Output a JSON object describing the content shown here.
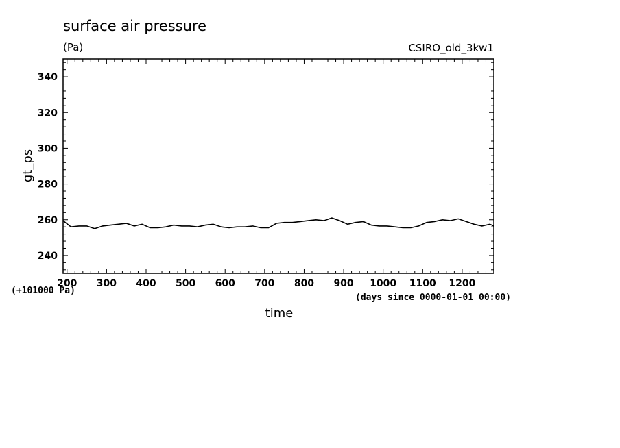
{
  "chart_data": {
    "type": "line",
    "title": "surface air pressure",
    "units": "(Pa)",
    "model": "CSIRO_old_3kw1",
    "ylabel": "gt_ps",
    "xlabel": "time",
    "y_offset_note": "(+101000 Pa)",
    "x_axis_note": "(days since 0000-01-01 00:00)",
    "xlim": [
      190,
      1280
    ],
    "ylim": [
      230,
      350
    ],
    "x_ticks": [
      200,
      300,
      400,
      500,
      600,
      700,
      800,
      900,
      1000,
      1100,
      1200
    ],
    "y_ticks": [
      240,
      260,
      280,
      300,
      320,
      340
    ],
    "grid": false,
    "series": [
      {
        "x": [
          190,
          210,
          230,
          250,
          270,
          290,
          310,
          330,
          350,
          370,
          390,
          410,
          430,
          450,
          470,
          490,
          510,
          530,
          550,
          570,
          590,
          610,
          630,
          650,
          670,
          690,
          710,
          730,
          750,
          770,
          790,
          810,
          830,
          850,
          870,
          890,
          910,
          930,
          950,
          970,
          990,
          1010,
          1030,
          1050,
          1070,
          1090,
          1110,
          1130,
          1150,
          1170,
          1190,
          1210,
          1230,
          1250,
          1270,
          1280
        ],
        "values": [
          259.5,
          256.0,
          256.5,
          256.5,
          255.0,
          256.5,
          257.0,
          257.5,
          258.0,
          256.5,
          257.5,
          255.5,
          255.5,
          256.0,
          257.0,
          256.5,
          256.5,
          256.0,
          257.0,
          257.5,
          256.0,
          255.5,
          256.0,
          256.0,
          256.5,
          255.5,
          255.5,
          258.0,
          258.5,
          258.5,
          259.0,
          259.5,
          260.0,
          259.5,
          261.0,
          259.5,
          257.5,
          258.5,
          259.0,
          257.0,
          256.5,
          256.5,
          256.0,
          255.5,
          255.5,
          256.5,
          258.5,
          259.0,
          260.0,
          259.5,
          260.5,
          259.0,
          257.5,
          256.5,
          257.5,
          256.5
        ]
      }
    ]
  }
}
